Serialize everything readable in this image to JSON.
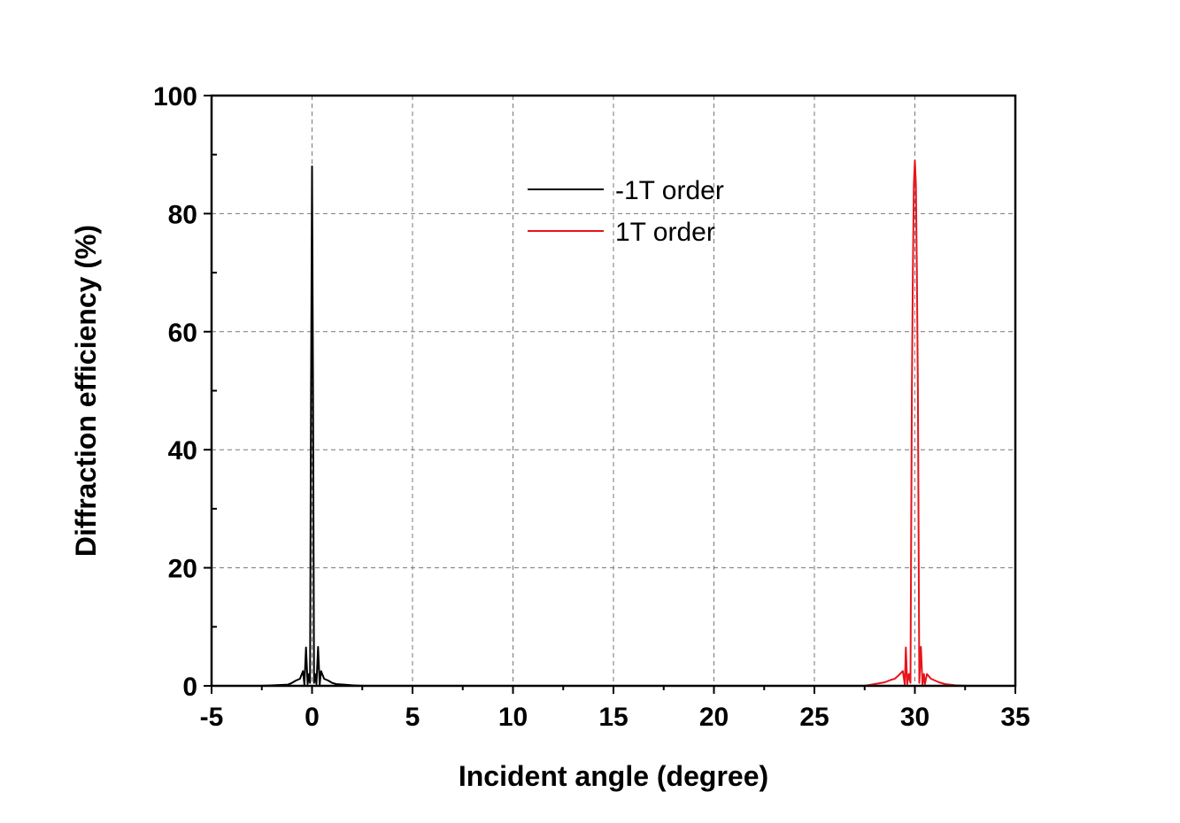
{
  "chart_data": {
    "type": "line",
    "title": "",
    "xlabel": "Incident angle (degree)",
    "ylabel": "Diffraction efficiency (%)",
    "xlim": [
      -5,
      35
    ],
    "ylim": [
      0,
      100
    ],
    "xticks": [
      -5,
      0,
      5,
      10,
      15,
      20,
      25,
      30,
      35
    ],
    "yticks": [
      0,
      20,
      40,
      60,
      80,
      100
    ],
    "xtick_labels": [
      "-5",
      "0",
      "5",
      "10",
      "15",
      "20",
      "25",
      "30",
      "35"
    ],
    "ytick_labels": [
      "0",
      "20",
      "40",
      "60",
      "80",
      "100"
    ],
    "grid": true,
    "legend_position": "top-center",
    "series": [
      {
        "name": "-1T order",
        "color": "#000000",
        "x": [
          -2.5,
          -1.2,
          -1.0,
          -0.8,
          -0.6,
          -0.45,
          -0.38,
          -0.3,
          -0.22,
          -0.15,
          -0.1,
          -0.05,
          0.0,
          0.05,
          0.1,
          0.15,
          0.22,
          0.3,
          0.38,
          0.45,
          0.6,
          0.8,
          1.0,
          1.2,
          1.6,
          2.0,
          2.5
        ],
        "y": [
          0,
          0.2,
          0.5,
          0.9,
          1.2,
          2.5,
          0.2,
          6.5,
          0.3,
          2.0,
          0.5,
          50,
          88,
          50,
          0.5,
          2.0,
          0.3,
          6.6,
          0.2,
          2.5,
          1.2,
          0.9,
          0.5,
          0.3,
          0.2,
          0.1,
          0
        ]
      },
      {
        "name": "1T order",
        "color": "#e8141b",
        "x": [
          25.0,
          27.5,
          28.0,
          28.5,
          28.8,
          29.0,
          29.2,
          29.4,
          29.5,
          29.55,
          29.62,
          29.7,
          29.78,
          29.85,
          29.9,
          29.95,
          30.0,
          30.05,
          30.1,
          30.15,
          30.22,
          30.3,
          30.38,
          30.45,
          30.5,
          30.6,
          30.8,
          31.0,
          31.2,
          31.5,
          32.0,
          32.5,
          35.0
        ],
        "y": [
          0,
          0,
          0.3,
          0.6,
          1.0,
          1.2,
          1.8,
          2.5,
          0.2,
          6.5,
          0.3,
          2.0,
          0.5,
          50,
          70,
          85,
          89,
          85,
          70,
          50,
          0.5,
          6.6,
          0.2,
          2.0,
          0.3,
          2.0,
          1.2,
          0.9,
          0.6,
          0.3,
          0.1,
          0,
          0
        ]
      }
    ]
  }
}
